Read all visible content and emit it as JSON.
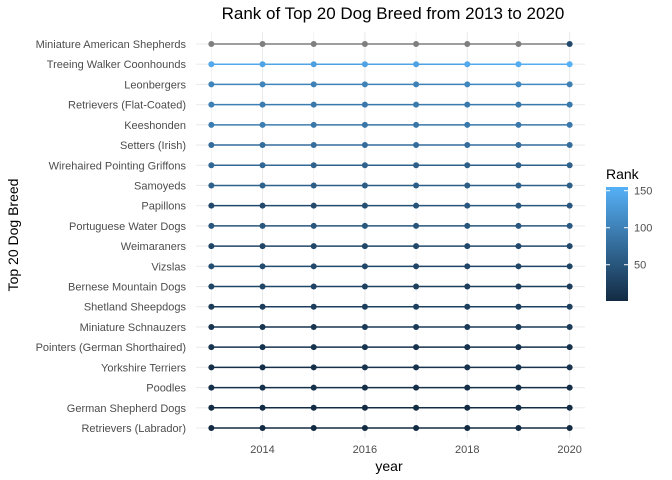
{
  "chart_data": {
    "type": "scatter",
    "title": "Rank of Top 20 Dog Breed from 2013 to 2020",
    "xlabel": "year",
    "ylabel": "Top 20 Dog Breed",
    "xlim": [
      2012.7,
      2020.3
    ],
    "x": [
      2013,
      2014,
      2015,
      2016,
      2017,
      2018,
      2019,
      2020
    ],
    "xticks": [
      2014,
      2016,
      2018,
      2020
    ],
    "xtick_labels": [
      "2014",
      "2016",
      "2018",
      "2020"
    ],
    "grid": true,
    "legend": {
      "title": "Rank",
      "position": "right",
      "ticks": [
        50,
        100,
        150
      ],
      "tick_labels": [
        "50",
        "100",
        "150"
      ],
      "range": [
        1,
        155
      ],
      "low_color": "#132B43",
      "high_color": "#56B1F7",
      "na_color": "#7f7f7f"
    },
    "categories": [
      "Retrievers (Labrador)",
      "German Shepherd Dogs",
      "Poodles",
      "Yorkshire Terriers",
      "Pointers (German Shorthaired)",
      "Miniature Schnauzers",
      "Shetland Sheepdogs",
      "Bernese Mountain Dogs",
      "Vizslas",
      "Weimaraners",
      "Portuguese Water Dogs",
      "Papillons",
      "Samoyeds",
      "Wirehaired Pointing Griffons",
      "Setters (Irish)",
      "Keeshonden",
      "Retrievers (Flat-Coated)",
      "Leonbergers",
      "Treeing Walker Coonhounds",
      "Miniature American Shepherds"
    ],
    "series": [
      {
        "values": [
          1,
          1,
          1,
          1,
          1,
          1,
          1,
          1
        ]
      },
      {
        "values": [
          2,
          2,
          2,
          2,
          2,
          2,
          3,
          3
        ]
      },
      {
        "values": [
          8,
          8,
          8,
          7,
          7,
          7,
          6,
          5
        ]
      },
      {
        "values": [
          6,
          6,
          7,
          9,
          9,
          10,
          10,
          10
        ]
      },
      {
        "values": [
          12,
          11,
          11,
          11,
          9,
          9,
          9,
          8
        ]
      },
      {
        "values": [
          11,
          12,
          12,
          17,
          18,
          19,
          18,
          18
        ]
      },
      {
        "values": [
          21,
          22,
          22,
          24,
          25,
          25,
          25,
          25
        ]
      },
      {
        "values": [
          32,
          32,
          29,
          26,
          25,
          22,
          22,
          22
        ]
      },
      {
        "values": [
          41,
          38,
          35,
          33,
          31,
          30,
          31,
          32
        ]
      },
      {
        "values": [
          31,
          32,
          33,
          33,
          35,
          35,
          35,
          35
        ]
      },
      {
        "values": [
          50,
          50,
          50,
          51,
          49,
          49,
          51,
          55
        ]
      },
      {
        "values": [
          34,
          36,
          37,
          43,
          47,
          51,
          51,
          52
        ]
      },
      {
        "values": [
          64,
          63,
          60,
          57,
          59,
          58,
          62,
          61
        ]
      },
      {
        "values": [
          70,
          70,
          65,
          65,
          62,
          61,
          62,
          63
        ]
      },
      {
        "values": [
          76,
          77,
          77,
          77,
          77,
          77,
          76,
          76
        ]
      },
      {
        "values": [
          95,
          96,
          88,
          87,
          87,
          89,
          90,
          90
        ]
      },
      {
        "values": [
          99,
          94,
          90,
          90,
          92,
          91,
          89,
          89
        ]
      },
      {
        "values": [
          103,
          103,
          100,
          101,
          100,
          107,
          109,
          97
        ]
      },
      {
        "values": [
          145,
          140,
          135,
          138,
          137,
          146,
          150,
          155
        ]
      },
      {
        "values": [
          null,
          null,
          null,
          null,
          null,
          null,
          null,
          36
        ]
      }
    ]
  }
}
